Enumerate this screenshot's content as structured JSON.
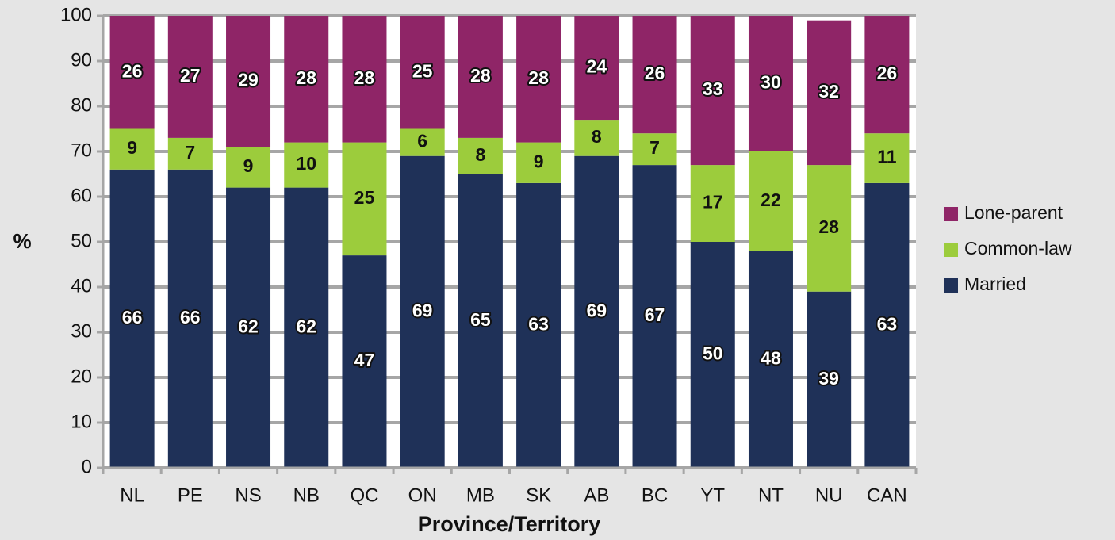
{
  "chart_data": {
    "type": "bar",
    "stacked": true,
    "title": "",
    "xlabel": "Province/Territory",
    "ylabel": "%",
    "ylim": [
      0,
      100
    ],
    "yticks": [
      0,
      10,
      20,
      30,
      40,
      50,
      60,
      70,
      80,
      90,
      100
    ],
    "grid": true,
    "legend_position": "right",
    "categories": [
      "NL",
      "PE",
      "NS",
      "NB",
      "QC",
      "ON",
      "MB",
      "SK",
      "AB",
      "BC",
      "YT",
      "NT",
      "NU",
      "CAN"
    ],
    "series": [
      {
        "name": "Married",
        "color": "#1f3158",
        "values": [
          66,
          66,
          62,
          62,
          47,
          69,
          65,
          63,
          69,
          67,
          50,
          48,
          39,
          63
        ]
      },
      {
        "name": "Common-law",
        "color": "#9ccc3c",
        "values": [
          9,
          7,
          9,
          10,
          25,
          6,
          8,
          9,
          8,
          7,
          17,
          22,
          28,
          11
        ]
      },
      {
        "name": "Lone-parent",
        "color": "#8f2567",
        "values": [
          26,
          27,
          29,
          28,
          28,
          25,
          28,
          28,
          24,
          26,
          33,
          30,
          32,
          26
        ]
      }
    ]
  }
}
